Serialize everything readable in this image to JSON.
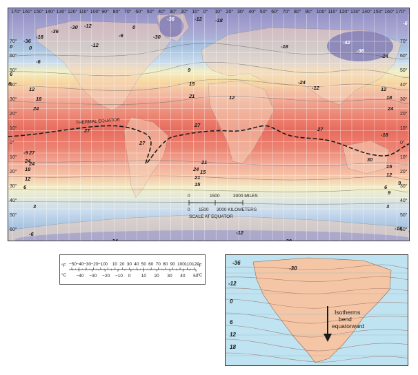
{
  "world_map": {
    "longitude_labels": [
      "170°",
      "160°",
      "150°",
      "140°",
      "130°",
      "120°",
      "110°",
      "100°",
      "90°",
      "80°",
      "70°",
      "60°",
      "50°",
      "40°",
      "30°",
      "20°",
      "10°",
      "0°",
      "10°",
      "20°",
      "30°",
      "40°",
      "50°",
      "60°",
      "70°",
      "80°",
      "90°",
      "100°",
      "110°",
      "120°",
      "130°",
      "140°",
      "150°",
      "160°",
      "170°"
    ],
    "latitude_labels": [
      "70°",
      "60°",
      "50°",
      "40°",
      "30°",
      "20°",
      "10°",
      "0°",
      "10°",
      "20°",
      "30°",
      "40°",
      "50°",
      "60°",
      "70°"
    ],
    "thermal_equator_label": "THERMAL EQUATOR",
    "isotherm_labels": [
      "-36",
      "-18",
      "-36",
      "-30",
      "-12",
      "0",
      "6",
      "-6",
      "-6",
      "-30",
      "-42",
      "-36",
      "-24",
      "-18",
      "-24",
      "-12",
      "0",
      "-12",
      "9",
      "15",
      "21",
      "12",
      "27",
      "27",
      "6",
      "12",
      "18",
      "24",
      "-36",
      "-12",
      "-18",
      "0",
      "12",
      "18",
      "24",
      "27",
      "27",
      "24",
      "21",
      "15",
      "-9",
      "6",
      "12",
      "18",
      "24",
      "30",
      "27",
      "24",
      "21",
      "15",
      "9",
      "3",
      "3",
      "-6",
      "-18",
      "-24",
      "-6",
      "-30",
      "-12",
      "-18",
      "-6",
      "-6",
      "6",
      "9",
      "12",
      "15",
      "-18"
    ],
    "scale": {
      "miles_ticks": [
        "0",
        "1500",
        "3000 MILES"
      ],
      "km_ticks": [
        "0",
        "1500",
        "3000 KILOMETERS"
      ],
      "caption": "SCALE AT EQUATOR"
    }
  },
  "thermometer": {
    "fahrenheit_unit": "°F",
    "celsius_unit": "°C",
    "fahrenheit_ticks": [
      "−50",
      "−40",
      "−30",
      "−20",
      "−10",
      "0",
      "10",
      "20",
      "30",
      "40",
      "50",
      "60",
      "70",
      "80",
      "90",
      "100",
      "110",
      "120"
    ],
    "celsius_ticks": [
      "−40",
      "−30",
      "−20",
      "−10",
      "0",
      "10",
      "20",
      "30",
      "40",
      "50"
    ]
  },
  "inset_map": {
    "isotherm_labels": [
      "-36",
      "-30",
      "-12",
      "0",
      "6",
      "12",
      "18"
    ],
    "callout_lines": [
      "Isotherms",
      "bend",
      "equatorward"
    ]
  },
  "colors": {
    "ocean_cold": "#8f8ec3",
    "ocean_cool": "#a8c4e0",
    "ocean_mild": "#f3efc6",
    "ocean_warm": "#f2b9a3",
    "ocean_hot": "#e86b5d",
    "land": "#f5d2b8",
    "inset_land": "#f4c6a5",
    "inset_ocean": "#bfe3f0"
  }
}
